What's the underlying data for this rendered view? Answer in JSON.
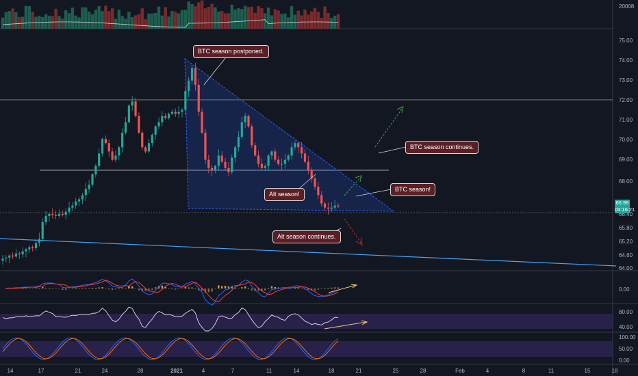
{
  "colors": {
    "background": "#131722",
    "up": "#26a69a",
    "down": "#ef5350",
    "triangle": "#2962ff",
    "trend_line": "#42a5f5",
    "arrow_up": "#43a047",
    "arrow_down": "#c62828",
    "annotation_bg": "#5a1f25",
    "rsi_band": "#3b2a6b"
  },
  "annotations": {
    "btc_postponed": "BTC season postponed.",
    "btc_continues": "BTC season continues.",
    "btc_season": "BTC season!",
    "alt_season": "Alt season!",
    "alt_continues": "Alt season continues."
  },
  "price_labels": {
    "last_price": "66.99",
    "countdown": "03:16:21"
  },
  "axes": {
    "volume_label": "20008",
    "price_ticks": [
      "75.00",
      "74.00",
      "73.00",
      "72.00",
      "71.00",
      "70.00",
      "69.00",
      "68.00",
      "67.00",
      "66.40",
      "65.80",
      "65.20",
      "64.60",
      "64.00"
    ],
    "macd_ticks": [
      "0.00"
    ],
    "rsi_ticks": [
      "80.00",
      "40.00"
    ],
    "stoch_ticks": [
      "100.00",
      "50.00",
      "0.00"
    ],
    "x_ticks": [
      "14",
      "17",
      "21",
      "24",
      "28",
      "2021",
      "4",
      "7",
      "11",
      "14",
      "18",
      "21",
      "25",
      "28",
      "Feb",
      "4",
      "8",
      "11",
      "15",
      "18"
    ]
  },
  "chart_data": {
    "type": "candlestick",
    "price_axis_range": [
      64.0,
      75.0
    ],
    "close": [
      64.45,
      64.5,
      64.6,
      64.55,
      64.7,
      64.65,
      64.8,
      64.9,
      65.0,
      64.95,
      65.2,
      65.4,
      66.2,
      66.5,
      66.6,
      66.55,
      66.5,
      66.6,
      66.55,
      66.7,
      66.9,
      67.0,
      67.2,
      67.3,
      67.5,
      67.8,
      68.0,
      68.5,
      68.9,
      69.5,
      70.2,
      70.0,
      69.6,
      69.2,
      69.4,
      69.8,
      70.5,
      71.0,
      71.8,
      72.0,
      71.3,
      70.5,
      69.8,
      69.6,
      70.0,
      70.4,
      70.8,
      71.0,
      71.3,
      71.2,
      71.4,
      71.5,
      71.4,
      71.5,
      71.6,
      72.5,
      73.0,
      73.6,
      72.8,
      71.5,
      70.5,
      69.2,
      68.8,
      68.7,
      68.9,
      69.4,
      69.1,
      68.8,
      68.6,
      69.3,
      69.8,
      70.3,
      71.0,
      71.3,
      70.8,
      69.9,
      69.4,
      69.0,
      68.8,
      68.9,
      69.4,
      69.6,
      69.2,
      69.0,
      69.0,
      69.2,
      69.4,
      69.8,
      70.0,
      69.8,
      69.5,
      69.1,
      68.7,
      68.3,
      67.9,
      67.5,
      67.1,
      66.9,
      66.85,
      66.9,
      67.0,
      66.95
    ],
    "macd_range": [
      -0.5,
      0.6
    ],
    "rsi_range": [
      0,
      100
    ],
    "stoch_range": [
      0,
      100
    ]
  }
}
